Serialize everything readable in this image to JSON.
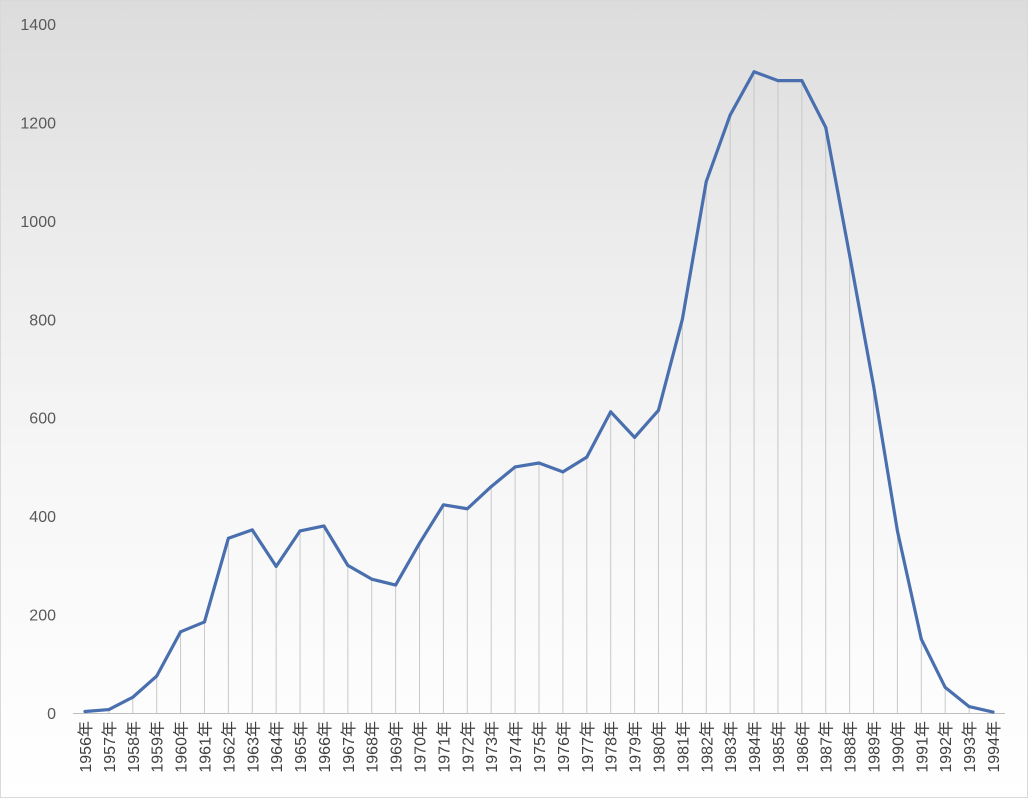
{
  "chart_data": {
    "type": "line",
    "title": "",
    "xlabel": "",
    "ylabel": "",
    "ylim": [
      0,
      1400
    ],
    "yticks": [
      0,
      200,
      400,
      600,
      800,
      1000,
      1200,
      1400
    ],
    "grid": false,
    "drop_lines": true,
    "colors": {
      "line": "#4a6fae",
      "drop_line": "#c8c8c8",
      "axis": "#bfbfbf",
      "tick_text": "#595959"
    },
    "categories": [
      "1956年",
      "1957年",
      "1958年",
      "1959年",
      "1960年",
      "1961年",
      "1962年",
      "1963年",
      "1964年",
      "1965年",
      "1966年",
      "1967年",
      "1968年",
      "1969年",
      "1970年",
      "1971年",
      "1972年",
      "1973年",
      "1974年",
      "1975年",
      "1976年",
      "1977年",
      "1978年",
      "1979年",
      "1980年",
      "1981年",
      "1982年",
      "1983年",
      "1984年",
      "1985年",
      "1986年",
      "1987年",
      "1988年",
      "1989年",
      "1990年",
      "1991年",
      "1992年",
      "1993年",
      "1994年"
    ],
    "series": [
      {
        "values": [
          3,
          7,
          32,
          75,
          165,
          185,
          355,
          372,
          298,
          370,
          380,
          300,
          272,
          260,
          345,
          423,
          415,
          460,
          500,
          508,
          490,
          520,
          612,
          560,
          615,
          800,
          1080,
          1215,
          1303,
          1285,
          1285,
          1190,
          930,
          665,
          370,
          150,
          52,
          13,
          2
        ]
      }
    ]
  }
}
